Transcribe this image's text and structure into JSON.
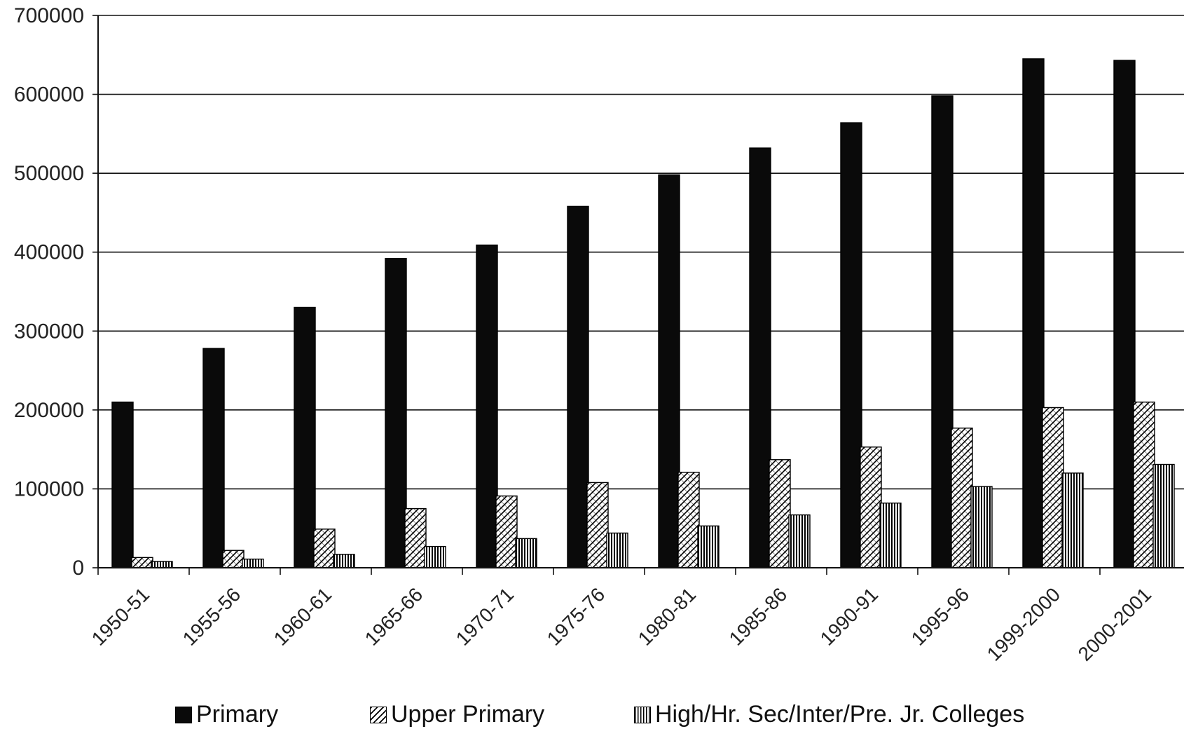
{
  "chart_data": {
    "type": "bar",
    "title": "",
    "xlabel": "",
    "ylabel": "",
    "ylim": [
      0,
      700000
    ],
    "yticks": [
      0,
      100000,
      200000,
      300000,
      400000,
      500000,
      600000,
      700000
    ],
    "ytick_labels": [
      "0",
      "100000",
      "200000",
      "300000",
      "400000",
      "500000",
      "600000",
      "700000"
    ],
    "grid": true,
    "legend_position": "bottom",
    "categories": [
      "1950-51",
      "1955-56",
      "1960-61",
      "1965-66",
      "1970-71",
      "1975-76",
      "1980-81",
      "1985-86",
      "1990-91",
      "1995-96",
      "1999-2000",
      "2000-2001"
    ],
    "series": [
      {
        "name": "Primary",
        "pattern": "solid",
        "color": "#0a0a0a",
        "values": [
          210000,
          278000,
          330000,
          392000,
          409000,
          458000,
          498000,
          532000,
          564000,
          598000,
          645000,
          643000
        ]
      },
      {
        "name": "Upper Primary",
        "pattern": "diagonal-hatch",
        "color": "#000000",
        "values": [
          13000,
          22000,
          49000,
          75000,
          91000,
          108000,
          121000,
          137000,
          153000,
          177000,
          203000,
          210000
        ]
      },
      {
        "name": "High/Hr. Sec/Inter/Pre. Jr. Colleges",
        "pattern": "vertical-lines",
        "color": "#000000",
        "values": [
          8000,
          11000,
          17000,
          27000,
          37000,
          44000,
          53000,
          67000,
          82000,
          103000,
          120000,
          131000
        ]
      }
    ]
  }
}
